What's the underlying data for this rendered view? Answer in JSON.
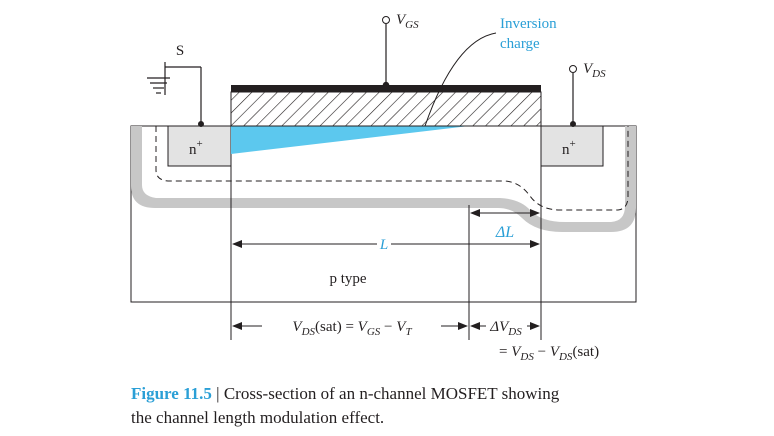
{
  "labels": {
    "source": "S",
    "vgs_main": "V",
    "vgs_sub": "GS",
    "inversion_line1": "Inversion",
    "inversion_line2": "charge",
    "vds_main": "V",
    "vds_sub": "DS",
    "n_plus_left": "n",
    "n_plus_right": "n",
    "plus_sup": "+",
    "delta_l": "ΔL",
    "length": "L",
    "p_type": "p type"
  },
  "equations": {
    "vds_sat_eq": {
      "v1": "V",
      "s1": "DS",
      "t1": "(sat) = ",
      "v2": "V",
      "s2": "GS",
      "t2": " − ",
      "v3": "V",
      "s3": "T"
    },
    "delta_vds": {
      "t0": "ΔV",
      "s0": "DS"
    },
    "delta_vds_eq": {
      "t0": "= ",
      "v1": "V",
      "s1": "DS",
      "t1": " − ",
      "v2": "V",
      "s2": "DS",
      "t2": "(sat)"
    }
  },
  "caption": {
    "figure_label": "Figure 11.5",
    "separator": " | ",
    "line1_text": "Cross-section of an n-channel MOSFET showing",
    "line2_text": "the channel length modulation effect."
  },
  "colors": {
    "accent_blue": "#2a9fd6",
    "inversion_fill": "#5cc8ee",
    "depletion_gray": "#c7c7c7",
    "nplus_fill": "#e3e3e3",
    "ink": "#231f20"
  }
}
